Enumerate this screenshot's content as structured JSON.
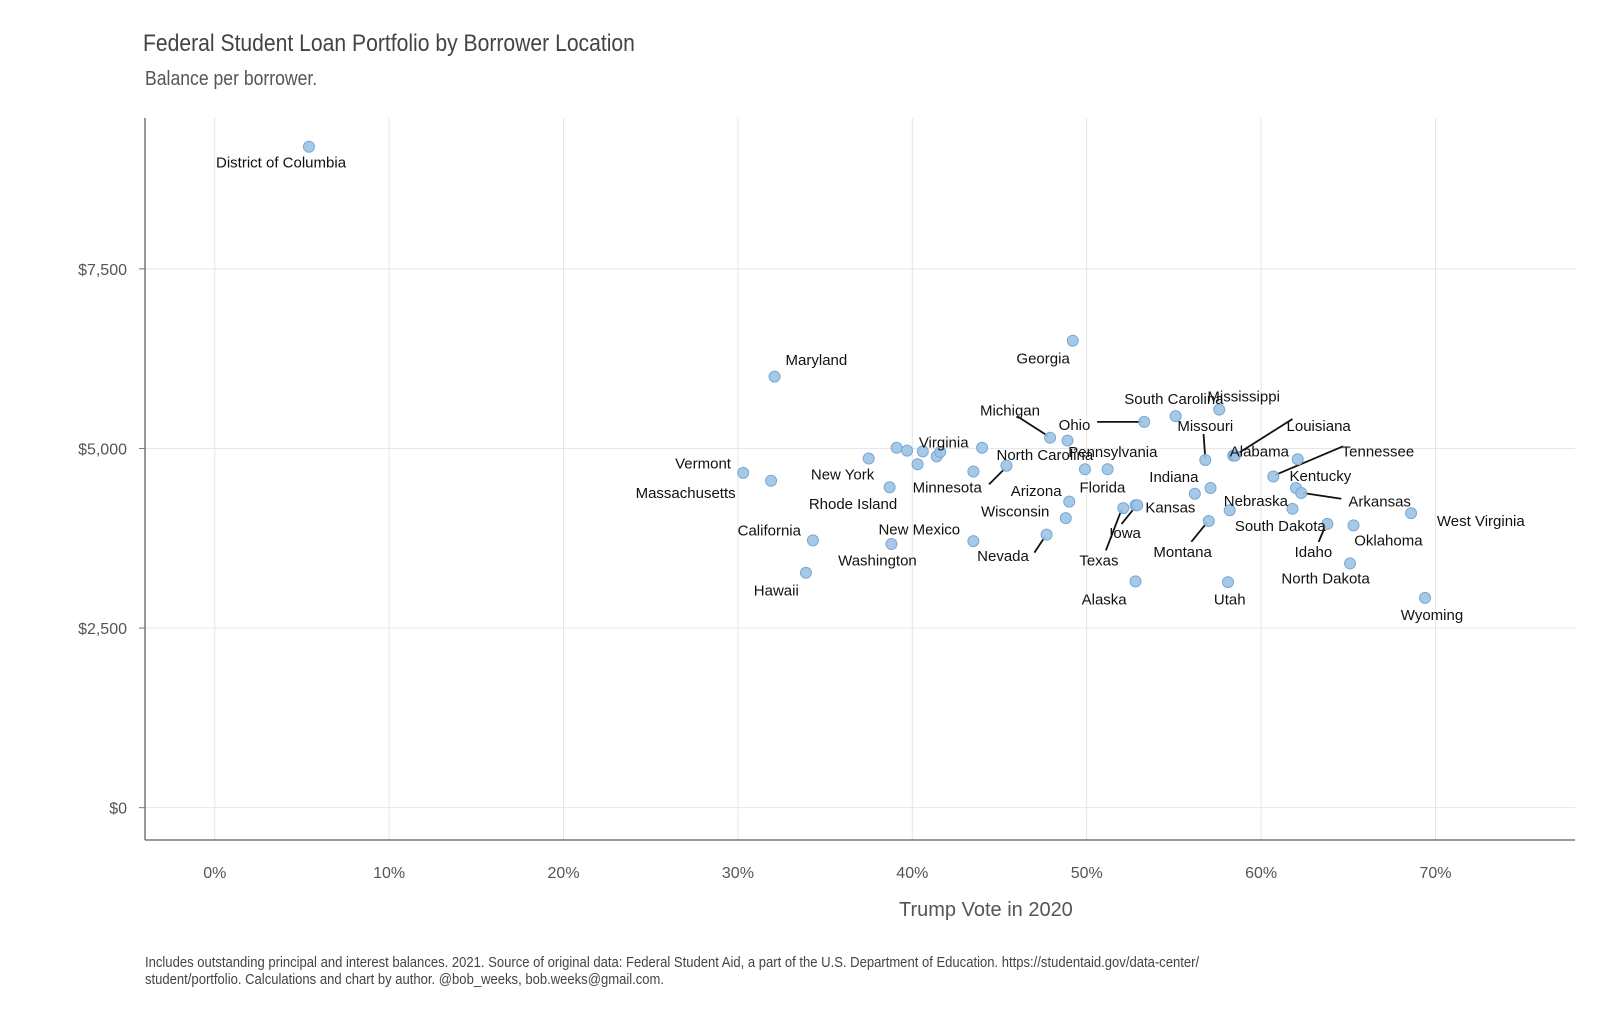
{
  "chart_data": {
    "type": "scatter",
    "title": "Federal Student Loan Portfolio by Borrower Location",
    "subtitle": "Balance per borrower.",
    "xlabel": "Trump Vote in 2020",
    "ylabel": "",
    "xlim": [
      -0.04,
      0.78
    ],
    "ylim": [
      -450,
      9600
    ],
    "x_ticks": [
      0,
      0.1,
      0.2,
      0.3,
      0.4,
      0.5,
      0.6,
      0.7
    ],
    "x_tick_labels": [
      "0%",
      "10%",
      "20%",
      "30%",
      "40%",
      "50%",
      "60%",
      "70%"
    ],
    "y_ticks": [
      0,
      2500,
      5000,
      7500
    ],
    "y_tick_labels": [
      "$0",
      "$2,500",
      "$5,000",
      "$7,500"
    ],
    "grid": true,
    "point_color": "#9dc3e6",
    "point_stroke": "#7aa8d6",
    "caption": [
      "Includes outstanding principal and interest balances. 2021. Source of original data: Federal Student Aid, a part of the U.S. Department of Education. https://studentaid.gov/data-center/",
      "student/portfolio. Calculations and chart by author. @bob_weeks, bob.weeks@gmail.com."
    ],
    "points": [
      {
        "x": 0.054,
        "y": 9200,
        "label": "District of Columbia",
        "lx": 0.038,
        "ly": 8980,
        "anchor": "middle"
      },
      {
        "x": 0.321,
        "y": 6000,
        "label": "Maryland",
        "lx": 0.345,
        "ly": 6230,
        "anchor": "middle"
      },
      {
        "x": 0.492,
        "y": 6500,
        "label": "Georgia",
        "lx": 0.475,
        "ly": 6250,
        "anchor": "middle"
      },
      {
        "x": 0.303,
        "y": 4660,
        "label": "Vermont",
        "lx": 0.28,
        "ly": 4790,
        "anchor": "middle"
      },
      {
        "x": 0.319,
        "y": 4550,
        "label": "Massachusetts",
        "lx": 0.27,
        "ly": 4380,
        "anchor": "middle"
      },
      {
        "x": 0.343,
        "y": 3720,
        "label": "California",
        "lx": 0.318,
        "ly": 3860,
        "anchor": "middle"
      },
      {
        "x": 0.339,
        "y": 3270,
        "label": "Hawaii",
        "lx": 0.322,
        "ly": 3020,
        "anchor": "middle"
      },
      {
        "x": 0.375,
        "y": 4860,
        "label": "New York",
        "lx": 0.36,
        "ly": 4640,
        "anchor": "middle"
      },
      {
        "x": 0.387,
        "y": 4460,
        "label": "Rhode Island",
        "lx": 0.366,
        "ly": 4230,
        "anchor": "middle"
      },
      {
        "x": 0.388,
        "y": 3670,
        "label": "Washington",
        "lx": 0.38,
        "ly": 3440,
        "anchor": "middle"
      },
      {
        "x": 0.391,
        "y": 5010,
        "label": "",
        "lx": 0,
        "ly": 0,
        "anchor": "middle"
      },
      {
        "x": 0.397,
        "y": 4970,
        "label": "",
        "lx": 0,
        "ly": 0,
        "anchor": "middle"
      },
      {
        "x": 0.403,
        "y": 4780,
        "label": "",
        "lx": 0,
        "ly": 0,
        "anchor": "middle"
      },
      {
        "x": 0.406,
        "y": 4960,
        "label": "",
        "lx": 0,
        "ly": 0,
        "anchor": "middle"
      },
      {
        "x": 0.414,
        "y": 4890,
        "label": "",
        "lx": 0,
        "ly": 0,
        "anchor": "middle"
      },
      {
        "x": 0.416,
        "y": 4950,
        "label": "Virginia",
        "lx": 0.418,
        "ly": 5080,
        "anchor": "middle"
      },
      {
        "x": 0.435,
        "y": 3710,
        "label": "New Mexico",
        "lx": 0.404,
        "ly": 3870,
        "anchor": "middle"
      },
      {
        "x": 0.435,
        "y": 4680,
        "label": "Minnesota",
        "lx": 0.42,
        "ly": 4460,
        "anchor": "middle",
        "leader": [
          0.444,
          4500,
          0.453,
          4720
        ]
      },
      {
        "x": 0.44,
        "y": 5010,
        "label": "",
        "lx": 0,
        "ly": 0,
        "anchor": "middle"
      },
      {
        "x": 0.454,
        "y": 4760,
        "label": "North Carolina",
        "lx": 0.476,
        "ly": 4910,
        "anchor": "middle"
      },
      {
        "x": 0.477,
        "y": 3800,
        "label": "Nevada",
        "lx": 0.452,
        "ly": 3500,
        "anchor": "middle",
        "leader": [
          0.47,
          3550,
          0.476,
          3770
        ]
      },
      {
        "x": 0.479,
        "y": 5150,
        "label": "Michigan",
        "lx": 0.456,
        "ly": 5530,
        "anchor": "middle",
        "leader": [
          0.46,
          5450,
          0.478,
          5170
        ]
      },
      {
        "x": 0.488,
        "y": 4030,
        "label": "Wisconsin",
        "lx": 0.459,
        "ly": 4120,
        "anchor": "middle"
      },
      {
        "x": 0.489,
        "y": 5110,
        "label": "",
        "lx": 0,
        "ly": 0,
        "anchor": "middle"
      },
      {
        "x": 0.49,
        "y": 4260,
        "label": "Arizona",
        "lx": 0.471,
        "ly": 4410,
        "anchor": "middle"
      },
      {
        "x": 0.499,
        "y": 4710,
        "label": "Florida",
        "lx": 0.509,
        "ly": 4460,
        "anchor": "middle"
      },
      {
        "x": 0.512,
        "y": 4710,
        "label": "Pennsylvania",
        "lx": 0.515,
        "ly": 4950,
        "anchor": "middle"
      },
      {
        "x": 0.521,
        "y": 4170,
        "label": "Texas",
        "lx": 0.507,
        "ly": 3440,
        "anchor": "middle",
        "leader": [
          0.511,
          3580,
          0.52,
          4150
        ]
      },
      {
        "x": 0.528,
        "y": 3150,
        "label": "Alaska",
        "lx": 0.51,
        "ly": 2900,
        "anchor": "middle"
      },
      {
        "x": 0.528,
        "y": 4210,
        "label": "Kansas",
        "lx": 0.548,
        "ly": 4180,
        "anchor": "middle"
      },
      {
        "x": 0.529,
        "y": 4210,
        "label": "Iowa",
        "lx": 0.522,
        "ly": 3820,
        "anchor": "middle",
        "leader": [
          0.52,
          3950,
          0.528,
          4190
        ]
      },
      {
        "x": 0.533,
        "y": 5370,
        "label": "Ohio",
        "lx": 0.493,
        "ly": 5330,
        "anchor": "middle",
        "leader": [
          0.506,
          5370,
          0.532,
          5370
        ]
      },
      {
        "x": 0.551,
        "y": 5450,
        "label": "South Carolina",
        "lx": 0.55,
        "ly": 5690,
        "anchor": "middle"
      },
      {
        "x": 0.562,
        "y": 4370,
        "label": "Indiana",
        "lx": 0.55,
        "ly": 4600,
        "anchor": "middle"
      },
      {
        "x": 0.568,
        "y": 4840,
        "label": "Missouri",
        "lx": 0.568,
        "ly": 5310,
        "anchor": "middle",
        "leader": [
          0.567,
          5200,
          0.568,
          4860
        ]
      },
      {
        "x": 0.57,
        "y": 3990,
        "label": "Montana",
        "lx": 0.555,
        "ly": 3560,
        "anchor": "middle",
        "leader": [
          0.56,
          3700,
          0.569,
          3970
        ]
      },
      {
        "x": 0.571,
        "y": 4450,
        "label": "",
        "lx": 0,
        "ly": 0,
        "anchor": "middle"
      },
      {
        "x": 0.576,
        "y": 5540,
        "label": "Mississippi",
        "lx": 0.59,
        "ly": 5720,
        "anchor": "middle"
      },
      {
        "x": 0.581,
        "y": 3140,
        "label": "Utah",
        "lx": 0.582,
        "ly": 2900,
        "anchor": "middle"
      },
      {
        "x": 0.582,
        "y": 4140,
        "label": "Nebraska",
        "lx": 0.597,
        "ly": 4270,
        "anchor": "middle"
      },
      {
        "x": 0.584,
        "y": 4900,
        "label": "Alabama",
        "lx": 0.599,
        "ly": 4960,
        "anchor": "middle"
      },
      {
        "x": 0.585,
        "y": 4900,
        "label": "Louisiana",
        "lx": 0.633,
        "ly": 5310,
        "anchor": "middle",
        "leader": [
          0.618,
          5410,
          0.586,
          4920
        ]
      },
      {
        "x": 0.607,
        "y": 4610,
        "label": "Tennessee",
        "lx": 0.667,
        "ly": 4960,
        "anchor": "middle",
        "leader": [
          0.647,
          5030,
          0.608,
          4630
        ]
      },
      {
        "x": 0.618,
        "y": 4160,
        "label": "South Dakota",
        "lx": 0.611,
        "ly": 3920,
        "anchor": "middle"
      },
      {
        "x": 0.62,
        "y": 4450,
        "label": "Kentucky",
        "lx": 0.634,
        "ly": 4620,
        "anchor": "middle"
      },
      {
        "x": 0.621,
        "y": 4850,
        "label": "",
        "lx": 0,
        "ly": 0,
        "anchor": "middle"
      },
      {
        "x": 0.623,
        "y": 4380,
        "label": "Arkansas",
        "lx": 0.668,
        "ly": 4260,
        "anchor": "middle",
        "leader": [
          0.646,
          4300,
          0.624,
          4380
        ]
      },
      {
        "x": 0.638,
        "y": 3950,
        "label": "Idaho",
        "lx": 0.63,
        "ly": 3560,
        "anchor": "middle",
        "leader": [
          0.633,
          3700,
          0.637,
          3930
        ]
      },
      {
        "x": 0.651,
        "y": 3400,
        "label": "North Dakota",
        "lx": 0.637,
        "ly": 3190,
        "anchor": "middle"
      },
      {
        "x": 0.653,
        "y": 3930,
        "label": "Oklahoma",
        "lx": 0.673,
        "ly": 3720,
        "anchor": "middle"
      },
      {
        "x": 0.686,
        "y": 4100,
        "label": "West Virginia",
        "lx": 0.726,
        "ly": 3990,
        "anchor": "middle"
      },
      {
        "x": 0.694,
        "y": 2920,
        "label": "Wyoming",
        "lx": 0.698,
        "ly": 2680,
        "anchor": "middle"
      }
    ]
  }
}
